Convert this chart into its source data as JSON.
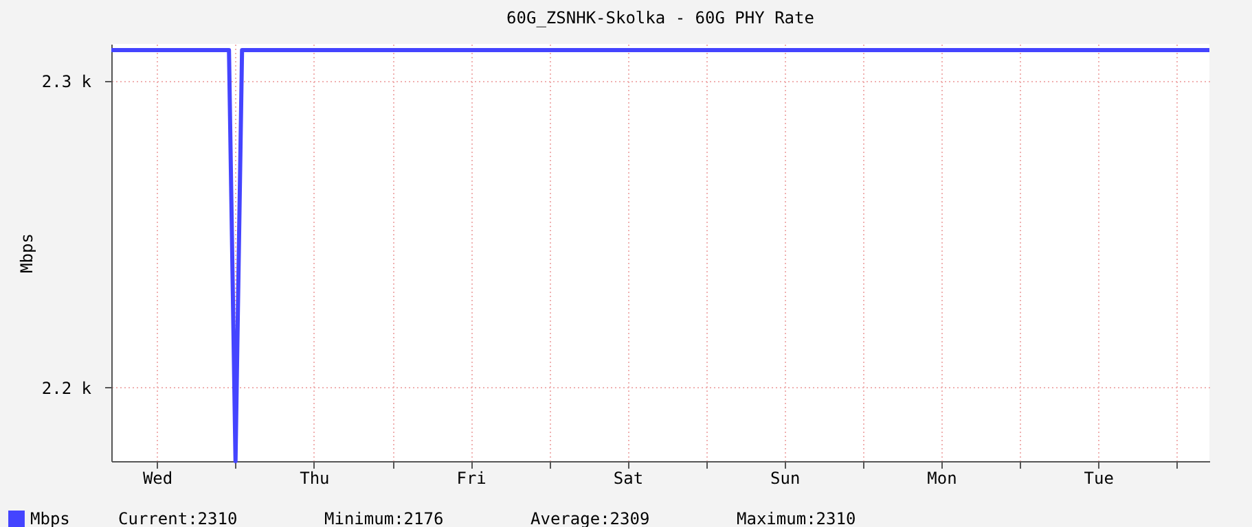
{
  "chart_data": {
    "type": "line",
    "title": "60G_ZSNHK-Skolka - 60G PHY Rate",
    "ylabel": "Mbps",
    "categories": [
      null,
      null,
      null,
      null,
      null,
      null,
      null,
      "Wed",
      null,
      null,
      null,
      null,
      null,
      null,
      null,
      null,
      null,
      null,
      null,
      null,
      null,
      null,
      null,
      null,
      null,
      null,
      null,
      null,
      null,
      null,
      null,
      "Thu",
      null,
      null,
      null,
      null,
      null,
      null,
      null,
      null,
      null,
      null,
      null,
      null,
      null,
      null,
      null,
      null,
      null,
      null,
      null,
      null,
      null,
      null,
      null,
      "Fri",
      null,
      null,
      null,
      null,
      null,
      null,
      null,
      null,
      null,
      null,
      null,
      null,
      null,
      null,
      null,
      null,
      null,
      null,
      null,
      null,
      null,
      null,
      null,
      "Sat",
      null,
      null,
      null,
      null,
      null,
      null,
      null,
      null,
      null,
      null,
      null,
      null,
      null,
      null,
      null,
      null,
      null,
      null,
      null,
      null,
      null,
      null,
      null,
      "Sun",
      null,
      null,
      null,
      null,
      null,
      null,
      null,
      null,
      null,
      null,
      null,
      null,
      null,
      null,
      null,
      null,
      null,
      null,
      null,
      null,
      null,
      null,
      null,
      "Mon",
      null,
      null,
      null,
      null,
      null,
      null,
      null,
      null,
      null,
      null,
      null,
      null,
      null,
      null,
      null,
      null,
      null,
      null,
      null,
      null,
      null,
      null,
      null,
      "Tue",
      null,
      null,
      null,
      null,
      null,
      null,
      null,
      null,
      null,
      null,
      null,
      null,
      null,
      null,
      null,
      null,
      null
    ],
    "series": [
      {
        "name": "Mbps",
        "color": "#4444ff",
        "values": [
          2310,
          2310,
          2310,
          2310,
          2310,
          2310,
          2310,
          2310,
          2310,
          2310,
          2310,
          2310,
          2310,
          2310,
          2310,
          2310,
          2310,
          2310,
          2310,
          2176,
          2310,
          2310,
          2310,
          2310,
          2310,
          2310,
          2310,
          2310,
          2310,
          2310,
          2310,
          2310,
          2310,
          2310,
          2310,
          2310,
          2310,
          2310,
          2310,
          2310,
          2310,
          2310,
          2310,
          2310,
          2310,
          2310,
          2310,
          2310,
          2310,
          2310,
          2310,
          2310,
          2310,
          2310,
          2310,
          2310,
          2310,
          2310,
          2310,
          2310,
          2310,
          2310,
          2310,
          2310,
          2310,
          2310,
          2310,
          2310,
          2310,
          2310,
          2310,
          2310,
          2310,
          2310,
          2310,
          2310,
          2310,
          2310,
          2310,
          2310,
          2310,
          2310,
          2310,
          2310,
          2310,
          2310,
          2310,
          2310,
          2310,
          2310,
          2310,
          2310,
          2310,
          2310,
          2310,
          2310,
          2310,
          2310,
          2310,
          2310,
          2310,
          2310,
          2310,
          2310,
          2310,
          2310,
          2310,
          2310,
          2310,
          2310,
          2310,
          2310,
          2310,
          2310,
          2310,
          2310,
          2310,
          2310,
          2310,
          2310,
          2310,
          2310,
          2310,
          2310,
          2310,
          2310,
          2310,
          2310,
          2310,
          2310,
          2310,
          2310,
          2310,
          2310,
          2310,
          2310,
          2310,
          2310,
          2310,
          2310,
          2310,
          2310,
          2310,
          2310,
          2310,
          2310,
          2310,
          2310,
          2310,
          2310,
          2310,
          2310,
          2310,
          2310,
          2310,
          2310,
          2310,
          2310,
          2310,
          2310,
          2310,
          2310,
          2310,
          2310,
          2310,
          2310,
          2310,
          2310,
          2310
        ]
      }
    ],
    "ylim": [
      2176,
      2312
    ],
    "yticks": [
      {
        "value": 2200,
        "label": "2.2 k"
      },
      {
        "value": 2300,
        "label": "2.3 k"
      }
    ],
    "grid": true,
    "legend": "bottom left",
    "line_style": "solid",
    "marker": "none",
    "annotations": [
      "Current:2310",
      "Minimum:2176",
      "Average:2309",
      "Maximum:2310"
    ]
  }
}
